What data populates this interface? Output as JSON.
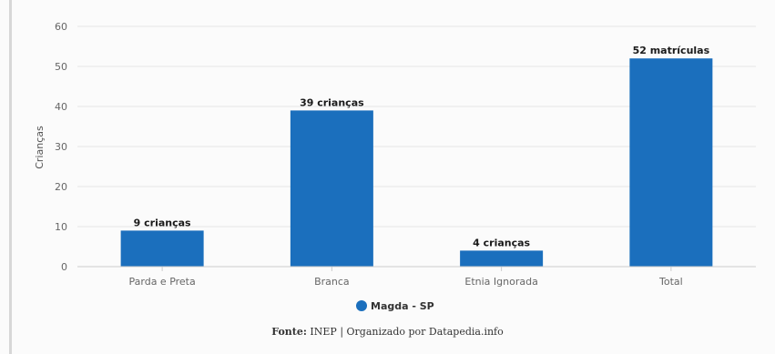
{
  "chart_data": {
    "type": "bar",
    "categories": [
      "Parda e Preta",
      "Branca",
      "Etnia Ignorada",
      "Total"
    ],
    "series": [
      {
        "name": "Magda - SP",
        "values": [
          9,
          39,
          4,
          52
        ],
        "data_labels": [
          "9 crianças",
          "39 crianças",
          "4 crianças",
          "52 matrículas"
        ],
        "color": "#1b6fbd"
      }
    ],
    "ylabel": "Crianças",
    "xlabel": "",
    "ylim": [
      0,
      60
    ],
    "yticks": [
      0,
      10,
      20,
      30,
      40,
      50,
      60
    ],
    "grid": true,
    "legend_position": "bottom"
  },
  "colors": {
    "bar": "#1b6fbd",
    "grid": "#e6e6e6",
    "axis": "#cccccc"
  },
  "legend": {
    "label": "Magda - SP"
  },
  "source": {
    "label": "Fonte:",
    "text": "INEP | Organizado por Datapedia.info"
  }
}
